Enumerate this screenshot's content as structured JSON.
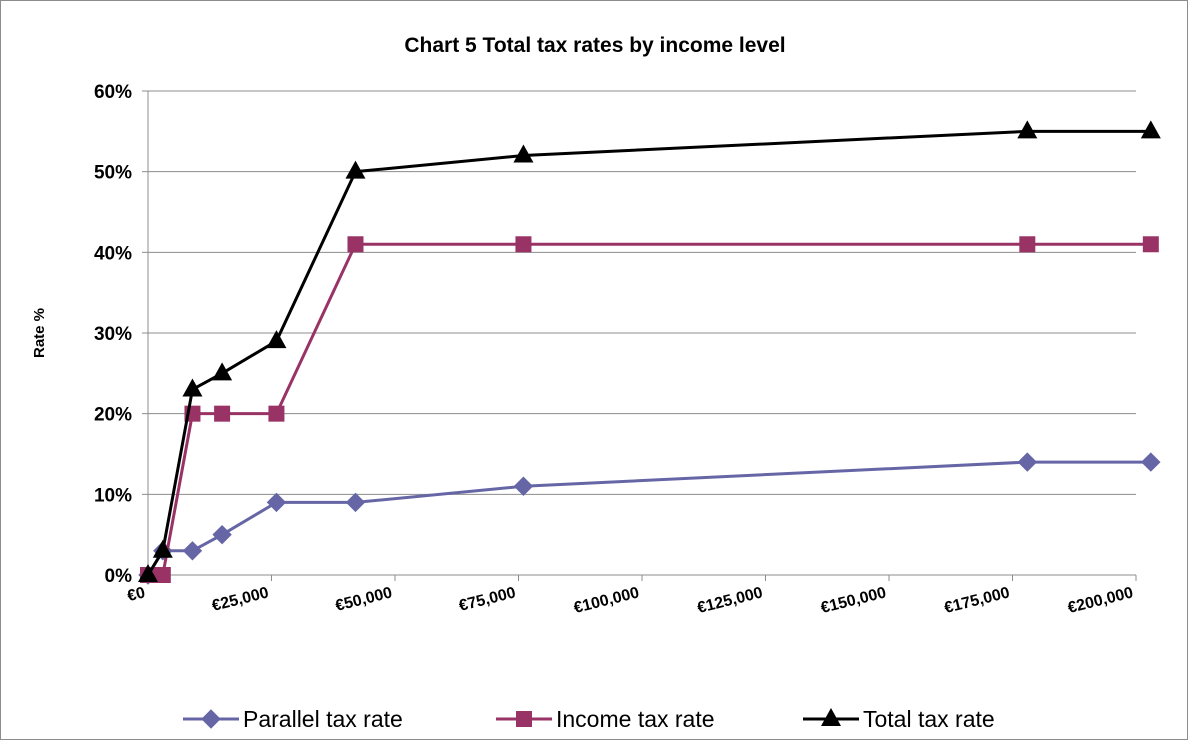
{
  "chart_data": {
    "type": "line",
    "title": "Chart 5 Total tax rates by income level",
    "xlabel": "",
    "ylabel": "Rate %",
    "xlim": [
      0,
      200000
    ],
    "ylim": [
      0,
      0.6
    ],
    "x_ticks": [
      0,
      25000,
      50000,
      75000,
      100000,
      125000,
      150000,
      175000,
      200000
    ],
    "x_tick_labels": [
      "€0",
      "€25,000",
      "€50,000",
      "€75,000",
      "€100,000",
      "€125,000",
      "€150,000",
      "€175,000",
      "€200,000"
    ],
    "y_ticks": [
      0,
      0.1,
      0.2,
      0.3,
      0.4,
      0.5,
      0.6
    ],
    "y_tick_labels": [
      "0%",
      "10%",
      "20%",
      "30%",
      "40%",
      "50%",
      "60%"
    ],
    "grid": "horizontal",
    "legend_position": "bottom",
    "x": [
      0,
      3000,
      9000,
      15000,
      26000,
      42000,
      76000,
      178000,
      203000
    ],
    "series": [
      {
        "name": "Parallel tax rate",
        "color": "#6666a6",
        "marker": "diamond",
        "values": [
          0,
          0.03,
          0.03,
          0.05,
          0.09,
          0.09,
          0.11,
          0.14,
          0.14
        ]
      },
      {
        "name": "Income tax rate",
        "color": "#993366",
        "marker": "square",
        "values": [
          0,
          0,
          0.2,
          0.2,
          0.2,
          0.41,
          0.41,
          0.41,
          0.41
        ]
      },
      {
        "name": "Total tax rate",
        "color": "#000000",
        "marker": "triangle",
        "values": [
          0,
          0.03,
          0.23,
          0.25,
          0.29,
          0.5,
          0.52,
          0.55,
          0.55
        ]
      }
    ]
  }
}
